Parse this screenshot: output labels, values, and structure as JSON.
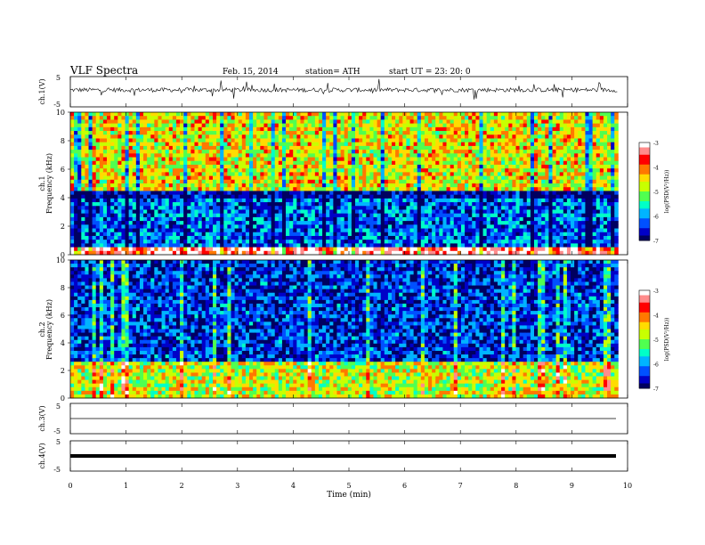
{
  "header": {
    "title": "VLF  Spectra",
    "date": "Feb. 15, 2014",
    "station": "station= ATH",
    "start": "start  UT  =    23: 20: 0"
  },
  "chart_data": [
    {
      "type": "line",
      "panel": "ch1-waveform",
      "ylabel": "ch.1(V)",
      "yticks": [
        "5",
        "-5"
      ],
      "ylim": [
        -5,
        5
      ],
      "color": "#000000"
    },
    {
      "type": "heatmap",
      "panel": "ch1-spectrogram",
      "ylabel_channel": "ch.1",
      "ylabel": "Frequency  (kHz)",
      "yticks": [
        "0",
        "2",
        "4",
        "6",
        "8",
        "10"
      ],
      "ylim": [
        0,
        10
      ],
      "data_extent_minutes": 9.83,
      "colorbar": {
        "label": "log(PSD(V²/Hz))",
        "ticks": [
          "-3",
          "-4",
          "-5",
          "-6",
          "-7"
        ],
        "range": [
          -7,
          -3
        ]
      },
      "description_bands": [
        {
          "freq_khz": [
            0,
            0.6
          ],
          "logpsd": -3.3
        },
        {
          "freq_khz": [
            0.6,
            3.9
          ],
          "logpsd": -6.2
        },
        {
          "freq_khz": [
            3.9,
            4.6
          ],
          "logpsd": -6.8
        },
        {
          "freq_khz": [
            4.6,
            10
          ],
          "logpsd": -4.6
        }
      ]
    },
    {
      "type": "heatmap",
      "panel": "ch2-spectrogram",
      "ylabel_channel": "ch.2",
      "ylabel": "Frequency  (kHz)",
      "yticks": [
        "0",
        "2",
        "4",
        "6",
        "8",
        "10"
      ],
      "ylim": [
        0,
        10
      ],
      "data_extent_minutes": 9.83,
      "colorbar": {
        "label": "log(PSD(V²/Hz))",
        "ticks": [
          "-3",
          "-4",
          "-5",
          "-6",
          "-7"
        ],
        "range": [
          -7,
          -3
        ]
      },
      "description_bands": [
        {
          "freq_khz": [
            0,
            2.6
          ],
          "logpsd": -4.8
        },
        {
          "freq_khz": [
            2.6,
            10
          ],
          "logpsd": -6.5
        }
      ]
    },
    {
      "type": "line",
      "panel": "ch3-waveform",
      "ylabel": "ch.3(V)",
      "yticks": [
        "5",
        "-5"
      ],
      "ylim": [
        -5,
        5
      ],
      "values_constant": 0
    },
    {
      "type": "line",
      "panel": "ch4-waveform",
      "ylabel": "ch.4(V)",
      "yticks": [
        "5",
        "-5"
      ],
      "ylim": [
        -5,
        5
      ],
      "values_constant": 0
    }
  ],
  "x_axis": {
    "label": "Time  (min)",
    "ticks": [
      "0",
      "1",
      "2",
      "3",
      "4",
      "5",
      "6",
      "7",
      "8",
      "9",
      "10"
    ],
    "range": [
      0,
      10
    ]
  },
  "colors": {
    "colormap": [
      "#000060",
      "#0000c8",
      "#0050ff",
      "#00b4ff",
      "#00ffc8",
      "#50ff50",
      "#c8ff00",
      "#ffdc00",
      "#ff7800",
      "#ff0000",
      "#ff8c8c",
      "#ffffff"
    ]
  }
}
